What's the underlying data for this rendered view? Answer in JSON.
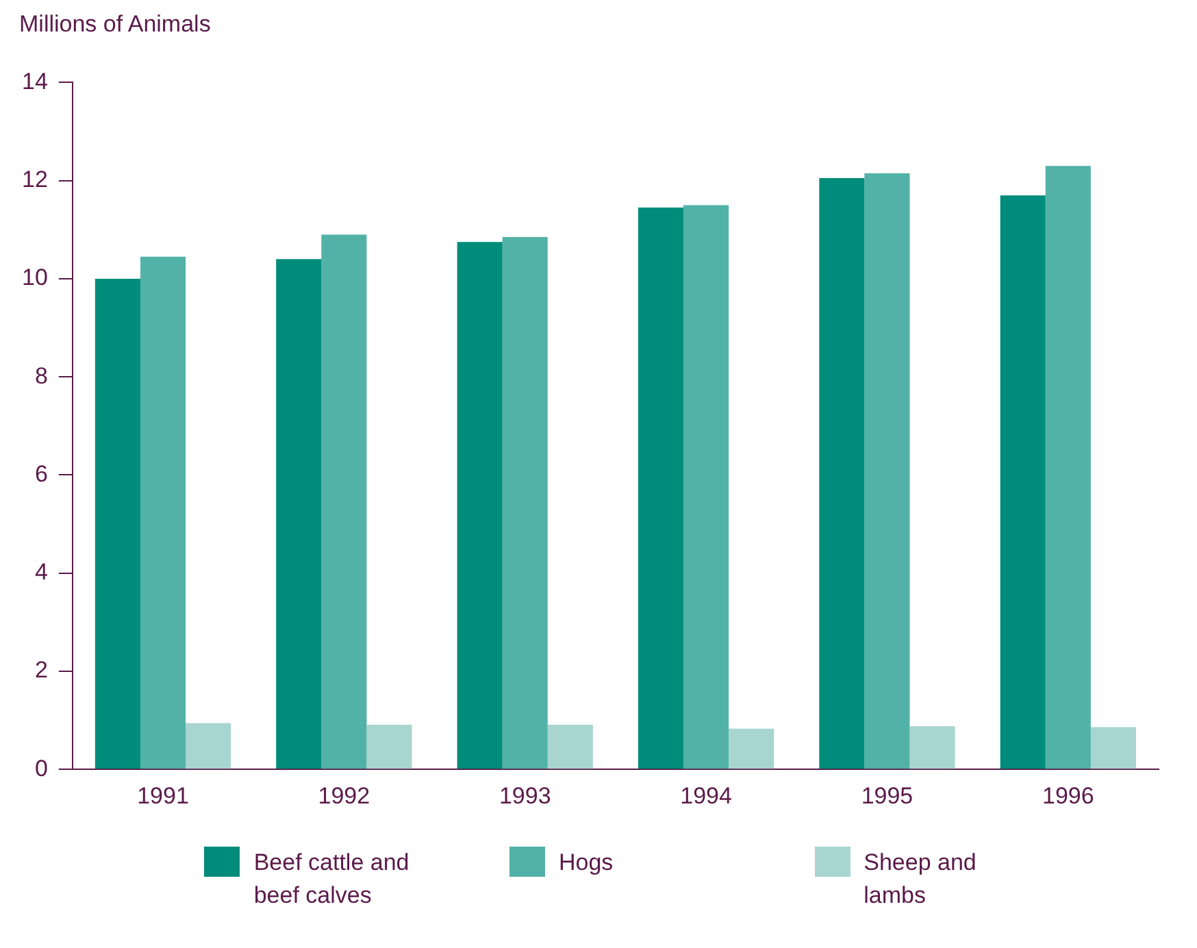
{
  "chart_data": {
    "type": "bar",
    "ylabel": "Millions of Animals",
    "categories": [
      "1991",
      "1992",
      "1993",
      "1994",
      "1995",
      "1996"
    ],
    "series": [
      {
        "name": "Beef cattle and beef calves",
        "color": "#008c7a",
        "values": [
          10.0,
          10.4,
          10.75,
          11.45,
          12.05,
          11.7
        ]
      },
      {
        "name": "Hogs",
        "color": "#52b2a8",
        "values": [
          10.45,
          10.9,
          10.85,
          11.5,
          12.15,
          12.3
        ]
      },
      {
        "name": "Sheep and lambs",
        "color": "#a8d5d0",
        "values": [
          0.94,
          0.91,
          0.91,
          0.83,
          0.88,
          0.86
        ]
      }
    ],
    "ylim": [
      0,
      14
    ],
    "yticks": [
      0,
      2,
      4,
      6,
      8,
      10,
      12,
      14
    ],
    "grid": false,
    "legend": "bottom"
  }
}
